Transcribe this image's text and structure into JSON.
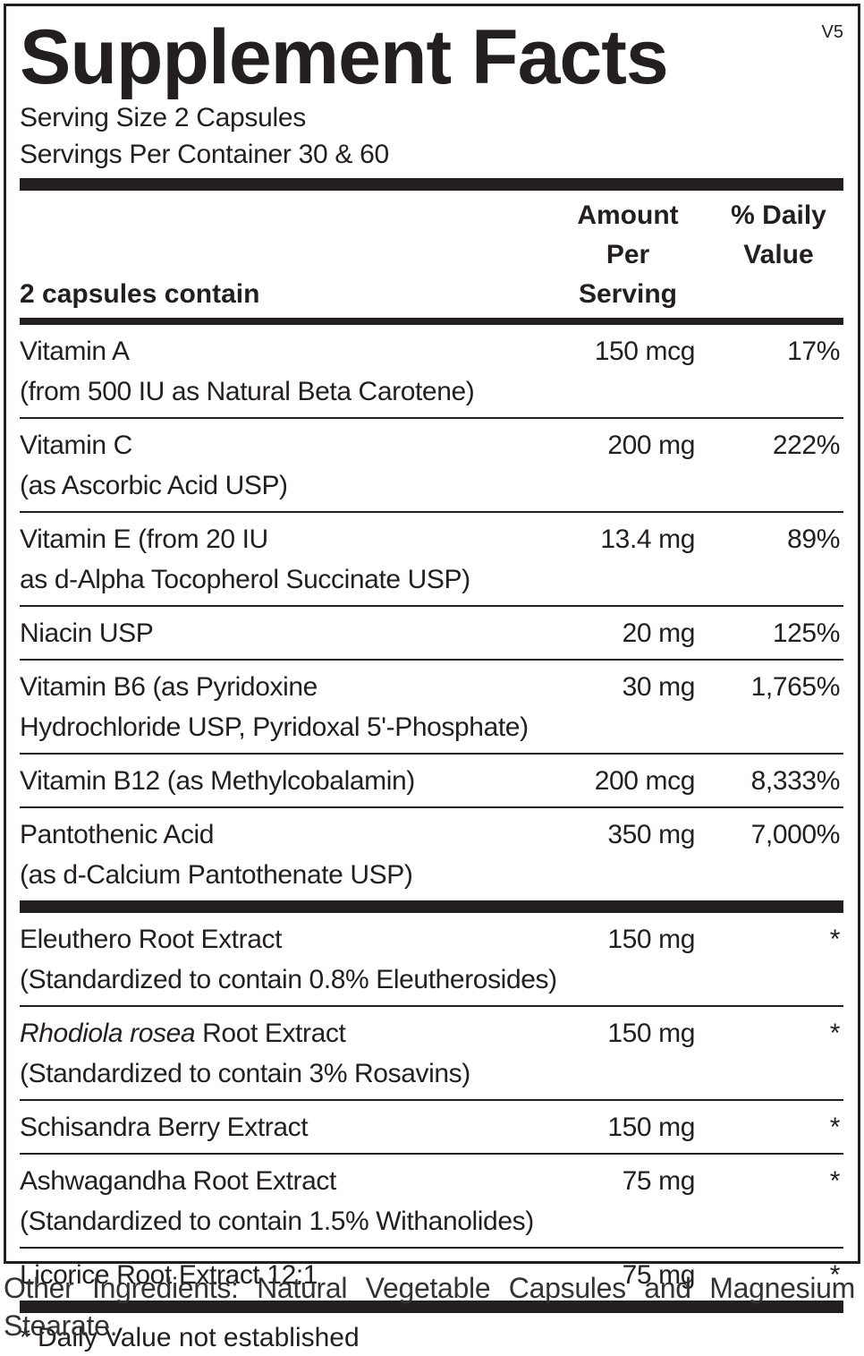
{
  "header": {
    "title": "Supplement Facts",
    "version": "V5",
    "serving_size": "Serving Size  2 Capsules",
    "servings_per_container": "Servings Per Container  30 & 60"
  },
  "table": {
    "columns": [
      "2 capsules contain",
      "Amount Per Serving",
      "% Daily Value"
    ],
    "groups": [
      [
        {
          "lines": [
            "Vitamin A",
            "(from 500 IU as Natural Beta Carotene)"
          ],
          "amount": "150 mcg",
          "dv": "17%"
        },
        {
          "lines": [
            "Vitamin C",
            "(as Ascorbic Acid USP)"
          ],
          "amount": "200 mg",
          "dv": "222%"
        },
        {
          "lines": [
            "Vitamin E (from 20 IU",
            "as d-Alpha Tocopherol Succinate USP)"
          ],
          "amount": "13.4 mg",
          "dv": "89%"
        },
        {
          "lines": [
            "Niacin USP"
          ],
          "amount": "20 mg",
          "dv": "125%"
        },
        {
          "lines": [
            "Vitamin B6 (as Pyridoxine",
            "Hydrochloride USP, Pyridoxal 5'-Phosphate)"
          ],
          "amount": "30 mg",
          "dv": "1,765%"
        },
        {
          "lines": [
            "Vitamin B12 (as Methylcobalamin)"
          ],
          "amount": "200 mcg",
          "dv": "8,333%"
        },
        {
          "lines": [
            "Pantothenic Acid",
            "(as d-Calcium Pantothenate USP)"
          ],
          "amount": "350 mg",
          "dv": "7,000%"
        }
      ],
      [
        {
          "lines": [
            "Eleuthero Root Extract",
            "(Standardized to contain 0.8% Eleutherosides)"
          ],
          "amount": "150 mg",
          "dv": "*"
        },
        {
          "italic": "Rhodiola rosea",
          "lines": [
            " Root Extract",
            "(Standardized to contain 3% Rosavins)"
          ],
          "amount": "150 mg",
          "dv": "*"
        },
        {
          "lines": [
            "Schisandra Berry Extract"
          ],
          "amount": "150 mg",
          "dv": "*"
        },
        {
          "lines": [
            "Ashwagandha Root Extract",
            "(Standardized to contain 1.5% Withanolides)"
          ],
          "amount": "75 mg",
          "dv": "*"
        },
        {
          "lines": [
            "Licorice Root Extract 12:1"
          ],
          "amount": "75 mg",
          "dv": "*"
        }
      ]
    ]
  },
  "footnote": "* Daily Value not established",
  "other_ingredients": "Other Ingredients: Natural Vegetable Capsules and Magnesium Stearate."
}
